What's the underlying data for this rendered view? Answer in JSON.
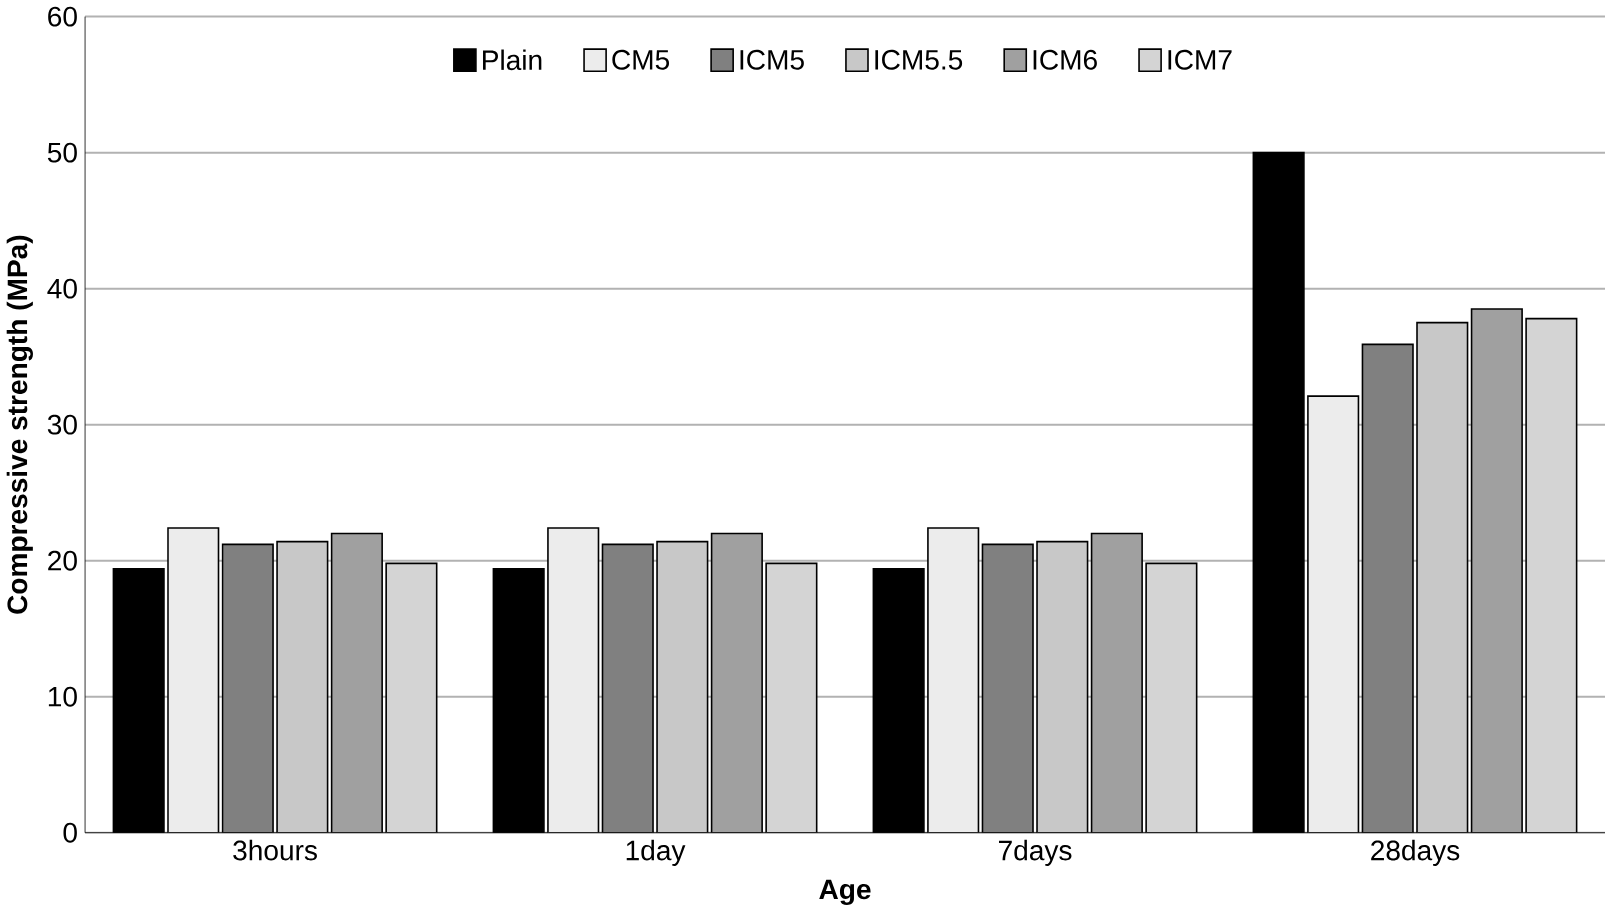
{
  "chart_data": {
    "type": "bar",
    "xlabel": "Age",
    "ylabel": "Compressive strength  (MPa)",
    "categories": [
      "3hours",
      "1day",
      "7days",
      "28days"
    ],
    "series": [
      {
        "name": "Plain",
        "color": "#000000",
        "values": [
          19.4,
          19.4,
          19.4,
          50
        ]
      },
      {
        "name": "CM5",
        "color": "#ececec",
        "values": [
          22.4,
          22.4,
          22.4,
          32.1
        ]
      },
      {
        "name": "ICM5",
        "color": "#808080",
        "values": [
          21.2,
          21.2,
          21.2,
          35.9
        ]
      },
      {
        "name": "ICM5.5",
        "color": "#c8c8c8",
        "values": [
          21.4,
          21.4,
          21.4,
          37.5
        ]
      },
      {
        "name": "ICM6",
        "color": "#a0a0a0",
        "values": [
          22.0,
          22.0,
          22.0,
          38.5
        ]
      },
      {
        "name": "ICM7",
        "color": "#d4d4d4",
        "values": [
          19.8,
          19.8,
          19.8,
          37.8
        ]
      }
    ],
    "ylim": [
      0,
      60
    ],
    "yticks": [
      0,
      10,
      20,
      30,
      40,
      50,
      60
    ],
    "grid": "y",
    "legend": "top"
  }
}
